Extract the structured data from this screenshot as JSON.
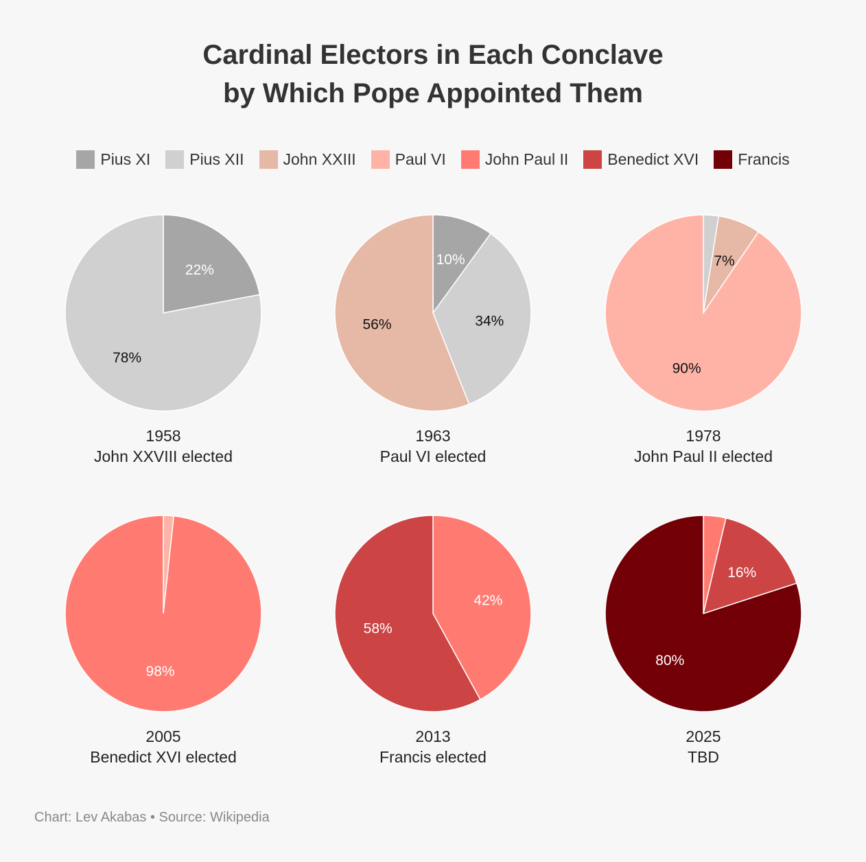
{
  "title": {
    "line1": "Cardinal Electors in Each Conclave",
    "line2": "by Which Pope Appointed Them"
  },
  "legend": [
    {
      "label": "Pius XI",
      "color": "#a6a6a6"
    },
    {
      "label": "Pius XII",
      "color": "#d0d0d0"
    },
    {
      "label": "John XXIII",
      "color": "#e6b8a6"
    },
    {
      "label": "Paul VI",
      "color": "#ffb3a7"
    },
    {
      "label": "John Paul II",
      "color": "#ff7b72"
    },
    {
      "label": "Benedict XVI",
      "color": "#cc4444"
    },
    {
      "label": "Francis",
      "color": "#720006"
    }
  ],
  "footer": "Chart: Lev Akabas • Source: Wikipedia",
  "chart_data": [
    {
      "type": "pie",
      "year": "1958",
      "caption": "John XXVIII elected",
      "slices": [
        {
          "series": "Pius XI",
          "value": 22,
          "label": "22%"
        },
        {
          "series": "Pius XII",
          "value": 78,
          "label": "78%"
        }
      ]
    },
    {
      "type": "pie",
      "year": "1963",
      "caption": "Paul VI elected",
      "slices": [
        {
          "series": "Pius XI",
          "value": 10,
          "label": "10%"
        },
        {
          "series": "Pius XII",
          "value": 34,
          "label": "34%"
        },
        {
          "series": "John XXIII",
          "value": 56,
          "label": "56%"
        }
      ]
    },
    {
      "type": "pie",
      "year": "1978",
      "caption": "John Paul II elected",
      "slices": [
        {
          "series": "Pius XII",
          "value": 2.5,
          "label": ""
        },
        {
          "series": "John XXIII",
          "value": 7,
          "label": "7%"
        },
        {
          "series": "Paul VI",
          "value": 90.5,
          "label": "90%"
        }
      ]
    },
    {
      "type": "pie",
      "year": "2005",
      "caption": "Benedict XVI elected",
      "slices": [
        {
          "series": "Paul VI",
          "value": 1.7,
          "label": ""
        },
        {
          "series": "John Paul II",
          "value": 98.3,
          "label": "98%"
        }
      ]
    },
    {
      "type": "pie",
      "year": "2013",
      "caption": "Francis elected",
      "slices": [
        {
          "series": "John Paul II",
          "value": 42,
          "label": "42%"
        },
        {
          "series": "Benedict XVI",
          "value": 58,
          "label": "58%"
        }
      ]
    },
    {
      "type": "pie",
      "year": "2025",
      "caption": "TBD",
      "slices": [
        {
          "series": "John Paul II",
          "value": 3.7,
          "label": ""
        },
        {
          "series": "Benedict XVI",
          "value": 16.3,
          "label": "16%"
        },
        {
          "series": "Francis",
          "value": 80,
          "label": "80%"
        }
      ]
    }
  ]
}
